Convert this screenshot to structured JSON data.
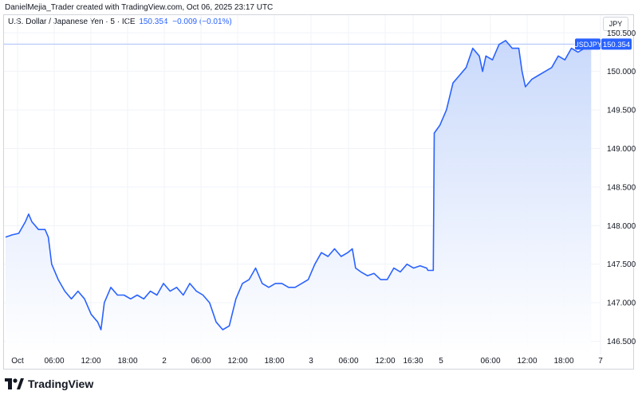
{
  "header": {
    "credit": "DanielMejia_Trader created with TradingView.com, Oct 06, 2025 23:17 UTC"
  },
  "legend": {
    "symbol": "U.S. Dollar / Japanese Yen · 5 · ICE",
    "price": "150.354",
    "change": "−0.009 (−0.01%)"
  },
  "currency_button": "JPY",
  "price_tag": {
    "symbol": "USDJPY",
    "value": "150.354"
  },
  "branding": {
    "name": "TradingView"
  },
  "colors": {
    "line": "#2962ff",
    "fill_top": "#c9d9fb",
    "fill_bottom": "#ffffff",
    "grid": "#f0f3fa",
    "axis_text": "#131722"
  },
  "chart_data": {
    "type": "area",
    "grid": true,
    "x_ticks": [
      "Oct",
      "06:00",
      "12:00",
      "18:00",
      "2",
      "06:00",
      "12:00",
      "18:00",
      "3",
      "06:00",
      "12:00",
      "16:30",
      "5",
      "06:00",
      "12:00",
      "18:00",
      "7"
    ],
    "y_ticks": [
      "150.500",
      "150.000",
      "149.500",
      "149.000",
      "148.500",
      "148.000",
      "147.500",
      "147.000",
      "146.500"
    ],
    "ylim": [
      146.33,
      150.73
    ],
    "last_value": 150.354,
    "series": [
      {
        "points": [
          [
            0.0,
            147.85
          ],
          [
            1.0,
            147.88
          ],
          [
            2.0,
            147.9
          ],
          [
            3.0,
            148.05
          ],
          [
            3.5,
            148.15
          ],
          [
            4.0,
            148.05
          ],
          [
            5.0,
            147.95
          ],
          [
            6.0,
            147.95
          ],
          [
            6.5,
            147.85
          ],
          [
            7.0,
            147.5
          ],
          [
            8.0,
            147.3
          ],
          [
            9.0,
            147.15
          ],
          [
            10.0,
            147.05
          ],
          [
            11.0,
            147.15
          ],
          [
            12.0,
            147.05
          ],
          [
            13.0,
            146.85
          ],
          [
            14.0,
            146.75
          ],
          [
            14.5,
            146.65
          ],
          [
            15.0,
            147.0
          ],
          [
            16.0,
            147.2
          ],
          [
            17.0,
            147.1
          ],
          [
            18.0,
            147.1
          ],
          [
            19.0,
            147.05
          ],
          [
            20.0,
            147.1
          ],
          [
            21.0,
            147.05
          ],
          [
            22.0,
            147.15
          ],
          [
            23.0,
            147.1
          ],
          [
            24.0,
            147.25
          ],
          [
            25.0,
            147.15
          ],
          [
            26.0,
            147.2
          ],
          [
            27.0,
            147.1
          ],
          [
            28.0,
            147.25
          ],
          [
            29.0,
            147.15
          ],
          [
            30.0,
            147.1
          ],
          [
            31.0,
            147.0
          ],
          [
            32.0,
            146.75
          ],
          [
            33.0,
            146.65
          ],
          [
            34.0,
            146.7
          ],
          [
            35.0,
            147.05
          ],
          [
            36.0,
            147.25
          ],
          [
            37.0,
            147.3
          ],
          [
            38.0,
            147.45
          ],
          [
            39.0,
            147.25
          ],
          [
            40.0,
            147.2
          ],
          [
            41.0,
            147.25
          ],
          [
            42.0,
            147.25
          ],
          [
            43.0,
            147.2
          ],
          [
            44.0,
            147.2
          ],
          [
            45.0,
            147.25
          ],
          [
            46.0,
            147.3
          ],
          [
            47.0,
            147.5
          ],
          [
            48.0,
            147.65
          ],
          [
            49.0,
            147.6
          ],
          [
            50.0,
            147.7
          ],
          [
            51.0,
            147.6
          ],
          [
            52.0,
            147.65
          ],
          [
            52.7,
            147.7
          ],
          [
            53.2,
            147.45
          ],
          [
            54.0,
            147.4
          ],
          [
            55.0,
            147.35
          ],
          [
            56.0,
            147.38
          ],
          [
            57.0,
            147.3
          ],
          [
            58.0,
            147.3
          ],
          [
            59.0,
            147.45
          ],
          [
            60.0,
            147.4
          ],
          [
            61.0,
            147.5
          ],
          [
            62.0,
            147.45
          ],
          [
            63.0,
            147.48
          ],
          [
            64.0,
            147.45
          ],
          [
            64.2,
            147.42
          ],
          [
            65.0,
            147.42
          ],
          [
            65.15,
            149.2
          ],
          [
            66.0,
            149.3
          ],
          [
            67.0,
            149.5
          ],
          [
            68.0,
            149.85
          ],
          [
            69.0,
            149.95
          ],
          [
            70.0,
            150.05
          ],
          [
            71.0,
            150.3
          ],
          [
            72.0,
            150.2
          ],
          [
            72.5,
            150.0
          ],
          [
            73.0,
            150.2
          ],
          [
            74.0,
            150.15
          ],
          [
            75.0,
            150.35
          ],
          [
            76.0,
            150.4
          ],
          [
            77.0,
            150.3
          ],
          [
            78.0,
            150.3
          ],
          [
            78.5,
            150.0
          ],
          [
            79.0,
            149.8
          ],
          [
            80.0,
            149.9
          ],
          [
            81.0,
            149.95
          ],
          [
            82.0,
            150.0
          ],
          [
            83.0,
            150.05
          ],
          [
            84.0,
            150.2
          ],
          [
            85.0,
            150.15
          ],
          [
            86.0,
            150.3
          ],
          [
            87.0,
            150.25
          ],
          [
            88.0,
            150.3
          ],
          [
            89.0,
            150.354
          ]
        ]
      }
    ]
  }
}
